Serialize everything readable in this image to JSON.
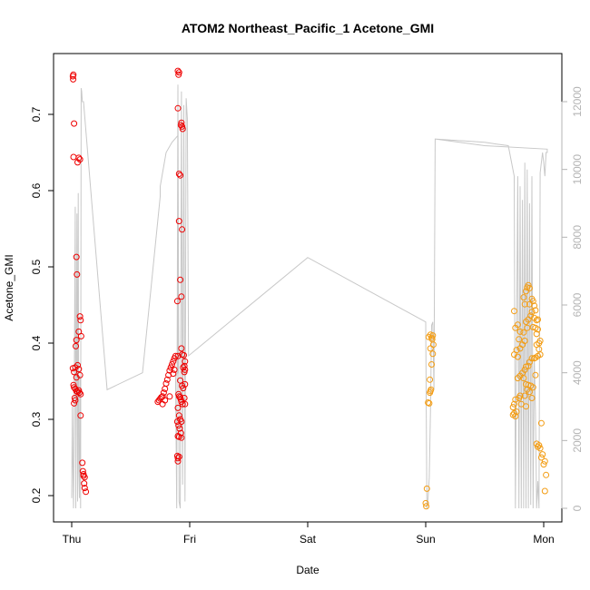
{
  "chart_data": {
    "type": "scatter",
    "title": "ATOM2 Northeast_Pacific_1 Acetone_GMI",
    "xlabel": "Date",
    "ylabel": "Acetone_GMI",
    "x_ticks": [
      "Thu",
      "Fri",
      "Sat",
      "Sun",
      "Mon"
    ],
    "y_ticks": [
      "0.2",
      "0.3",
      "0.4",
      "0.5",
      "0.6",
      "0.7"
    ],
    "y2_ticks": [
      "0",
      "2000",
      "4000",
      "6000",
      "8000",
      "10000",
      "12000"
    ],
    "xlim": [
      0,
      4.0
    ],
    "ylim": [
      0.185,
      0.757
    ],
    "y2lim": [
      0,
      12500
    ],
    "grid": false,
    "colors": {
      "red": "#ee0000",
      "orange": "#f39c12",
      "gray_line": "#c8c8c8",
      "axis": "#000000"
    },
    "series": [
      {
        "color": "red",
        "points": [
          [
            0.01,
            0.75
          ],
          [
            0.012,
            0.746
          ],
          [
            0.014,
            0.752
          ],
          [
            0.02,
            0.688
          ],
          [
            0.015,
            0.644
          ],
          [
            0.05,
            0.637
          ],
          [
            0.06,
            0.643
          ],
          [
            0.07,
            0.641
          ],
          [
            0.04,
            0.513
          ],
          [
            0.045,
            0.49
          ],
          [
            0.07,
            0.435
          ],
          [
            0.075,
            0.43
          ],
          [
            0.06,
            0.415
          ],
          [
            0.08,
            0.409
          ],
          [
            0.04,
            0.404
          ],
          [
            0.035,
            0.396
          ],
          [
            0.05,
            0.371
          ],
          [
            0.06,
            0.366
          ],
          [
            0.01,
            0.367
          ],
          [
            0.02,
            0.362
          ],
          [
            0.03,
            0.368
          ],
          [
            0.04,
            0.355
          ],
          [
            0.07,
            0.358
          ],
          [
            0.015,
            0.345
          ],
          [
            0.02,
            0.342
          ],
          [
            0.03,
            0.34
          ],
          [
            0.04,
            0.337
          ],
          [
            0.05,
            0.336
          ],
          [
            0.06,
            0.338
          ],
          [
            0.065,
            0.335
          ],
          [
            0.075,
            0.333
          ],
          [
            0.025,
            0.328
          ],
          [
            0.03,
            0.325
          ],
          [
            0.02,
            0.321
          ],
          [
            0.075,
            0.305
          ],
          [
            0.09,
            0.243
          ],
          [
            0.095,
            0.232
          ],
          [
            0.1,
            0.228
          ],
          [
            0.11,
            0.224
          ],
          [
            0.105,
            0.216
          ],
          [
            0.11,
            0.21
          ],
          [
            0.12,
            0.205
          ],
          [
            0.1,
            0.226
          ],
          [
            0.73,
            0.323
          ],
          [
            0.74,
            0.325
          ],
          [
            0.75,
            0.327
          ],
          [
            0.76,
            0.329
          ],
          [
            0.77,
            0.33
          ],
          [
            0.78,
            0.335
          ],
          [
            0.79,
            0.34
          ],
          [
            0.8,
            0.347
          ],
          [
            0.81,
            0.352
          ],
          [
            0.82,
            0.358
          ],
          [
            0.83,
            0.364
          ],
          [
            0.84,
            0.368
          ],
          [
            0.85,
            0.372
          ],
          [
            0.86,
            0.376
          ],
          [
            0.87,
            0.38
          ],
          [
            0.88,
            0.383
          ],
          [
            0.77,
            0.32
          ],
          [
            0.79,
            0.325
          ],
          [
            0.83,
            0.33
          ],
          [
            0.86,
            0.36
          ],
          [
            0.87,
            0.365
          ],
          [
            0.9,
            0.757
          ],
          [
            0.905,
            0.752
          ],
          [
            0.91,
            0.755
          ],
          [
            0.93,
            0.689
          ],
          [
            0.935,
            0.684
          ],
          [
            0.94,
            0.681
          ],
          [
            0.925,
            0.686
          ],
          [
            0.9,
            0.708
          ],
          [
            0.91,
            0.622
          ],
          [
            0.92,
            0.62
          ],
          [
            0.935,
            0.549
          ],
          [
            0.91,
            0.56
          ],
          [
            0.92,
            0.483
          ],
          [
            0.93,
            0.461
          ],
          [
            0.895,
            0.455
          ],
          [
            0.93,
            0.393
          ],
          [
            0.935,
            0.385
          ],
          [
            0.95,
            0.384
          ],
          [
            0.96,
            0.376
          ],
          [
            0.955,
            0.37
          ],
          [
            0.96,
            0.365
          ],
          [
            0.945,
            0.368
          ],
          [
            0.955,
            0.362
          ],
          [
            0.9,
            0.383
          ],
          [
            0.92,
            0.351
          ],
          [
            0.935,
            0.344
          ],
          [
            0.945,
            0.341
          ],
          [
            0.96,
            0.346
          ],
          [
            0.905,
            0.333
          ],
          [
            0.91,
            0.33
          ],
          [
            0.92,
            0.329
          ],
          [
            0.925,
            0.326
          ],
          [
            0.93,
            0.323
          ],
          [
            0.94,
            0.32
          ],
          [
            0.955,
            0.328
          ],
          [
            0.96,
            0.32
          ],
          [
            0.9,
            0.315
          ],
          [
            0.91,
            0.305
          ],
          [
            0.92,
            0.3
          ],
          [
            0.93,
            0.297
          ],
          [
            0.895,
            0.297
          ],
          [
            0.905,
            0.292
          ],
          [
            0.915,
            0.288
          ],
          [
            0.925,
            0.282
          ],
          [
            0.9,
            0.278
          ],
          [
            0.91,
            0.277
          ],
          [
            0.93,
            0.276
          ],
          [
            0.895,
            0.252
          ],
          [
            0.9,
            0.249
          ],
          [
            0.91,
            0.251
          ],
          [
            0.9,
            0.245
          ]
        ]
      },
      {
        "color": "orange",
        "points": [
          [
            3.0,
            0.19
          ],
          [
            3.005,
            0.186
          ],
          [
            3.01,
            0.209
          ],
          [
            3.02,
            0.322
          ],
          [
            3.03,
            0.321
          ],
          [
            3.04,
            0.337
          ],
          [
            3.035,
            0.352
          ],
          [
            3.05,
            0.372
          ],
          [
            3.06,
            0.386
          ],
          [
            3.04,
            0.393
          ],
          [
            3.05,
            0.407
          ],
          [
            3.06,
            0.41
          ],
          [
            3.055,
            0.405
          ],
          [
            3.065,
            0.398
          ],
          [
            3.025,
            0.408
          ],
          [
            3.04,
            0.411
          ],
          [
            3.035,
            0.335
          ],
          [
            3.045,
            0.339
          ],
          [
            3.75,
            0.442
          ],
          [
            3.78,
            0.424
          ],
          [
            3.76,
            0.42
          ],
          [
            3.8,
            0.415
          ],
          [
            3.79,
            0.405
          ],
          [
            3.77,
            0.391
          ],
          [
            3.75,
            0.385
          ],
          [
            3.78,
            0.382
          ],
          [
            3.8,
            0.393
          ],
          [
            3.82,
            0.398
          ],
          [
            3.84,
            0.403
          ],
          [
            3.83,
            0.414
          ],
          [
            3.86,
            0.42
          ],
          [
            3.85,
            0.428
          ],
          [
            3.87,
            0.431
          ],
          [
            3.89,
            0.436
          ],
          [
            3.9,
            0.441
          ],
          [
            3.88,
            0.451
          ],
          [
            3.84,
            0.451
          ],
          [
            3.83,
            0.46
          ],
          [
            3.85,
            0.468
          ],
          [
            3.86,
            0.473
          ],
          [
            3.87,
            0.476
          ],
          [
            3.88,
            0.472
          ],
          [
            3.9,
            0.458
          ],
          [
            3.91,
            0.455
          ],
          [
            3.92,
            0.449
          ],
          [
            3.93,
            0.443
          ],
          [
            3.94,
            0.43
          ],
          [
            3.95,
            0.431
          ],
          [
            3.92,
            0.433
          ],
          [
            3.91,
            0.421
          ],
          [
            3.93,
            0.42
          ],
          [
            3.95,
            0.418
          ],
          [
            3.94,
            0.412
          ],
          [
            3.96,
            0.4
          ],
          [
            3.97,
            0.403
          ],
          [
            3.96,
            0.392
          ],
          [
            3.97,
            0.385
          ],
          [
            3.95,
            0.383
          ],
          [
            3.93,
            0.381
          ],
          [
            3.9,
            0.38
          ],
          [
            3.88,
            0.375
          ],
          [
            3.87,
            0.37
          ],
          [
            3.85,
            0.369
          ],
          [
            3.84,
            0.365
          ],
          [
            3.82,
            0.361
          ],
          [
            3.8,
            0.357
          ],
          [
            3.78,
            0.354
          ],
          [
            3.83,
            0.354
          ],
          [
            3.85,
            0.346
          ],
          [
            3.87,
            0.345
          ],
          [
            3.89,
            0.344
          ],
          [
            3.91,
            0.342
          ],
          [
            3.86,
            0.339
          ],
          [
            3.88,
            0.336
          ],
          [
            3.84,
            0.331
          ],
          [
            3.8,
            0.331
          ],
          [
            3.79,
            0.328
          ],
          [
            3.76,
            0.326
          ],
          [
            3.75,
            0.32
          ],
          [
            3.74,
            0.316
          ],
          [
            3.77,
            0.31
          ],
          [
            3.75,
            0.308
          ],
          [
            3.74,
            0.306
          ],
          [
            3.76,
            0.304
          ],
          [
            3.81,
            0.32
          ],
          [
            3.85,
            0.317
          ],
          [
            3.9,
            0.328
          ],
          [
            3.94,
            0.398
          ],
          [
            3.92,
            0.38
          ],
          [
            3.93,
            0.358
          ],
          [
            3.94,
            0.268
          ],
          [
            3.95,
            0.264
          ],
          [
            3.96,
            0.266
          ],
          [
            3.97,
            0.262
          ],
          [
            3.98,
            0.295
          ],
          [
            3.99,
            0.254
          ],
          [
            4.0,
            0.241
          ],
          [
            4.01,
            0.245
          ],
          [
            4.02,
            0.227
          ],
          [
            4.01,
            0.206
          ],
          [
            3.98,
            0.25
          ]
        ]
      }
    ],
    "line_secondary": {
      "color": "gray_line",
      "points": [
        [
          0.0,
          300
        ],
        [
          0.005,
          3000
        ],
        [
          0.01,
          1300
        ],
        [
          0.015,
          0
        ],
        [
          0.02,
          2400
        ],
        [
          0.03,
          8900
        ],
        [
          0.035,
          0
        ],
        [
          0.045,
          8700
        ],
        [
          0.05,
          200
        ],
        [
          0.055,
          9300
        ],
        [
          0.06,
          1200
        ],
        [
          0.065,
          300
        ],
        [
          0.07,
          3900
        ],
        [
          0.075,
          0
        ],
        [
          0.08,
          12400
        ],
        [
          0.085,
          12300
        ],
        [
          0.09,
          12000
        ],
        [
          0.1,
          12000
        ],
        [
          0.3,
          3500
        ],
        [
          0.6,
          4000
        ],
        [
          0.75,
          9200
        ],
        [
          0.75,
          9500
        ],
        [
          0.8,
          10500
        ],
        [
          0.85,
          10800
        ],
        [
          0.9,
          11000
        ],
        [
          0.9,
          4000
        ],
        [
          0.88,
          3900
        ],
        [
          0.89,
          0
        ],
        [
          0.9,
          12500
        ],
        [
          0.91,
          200
        ],
        [
          0.92,
          0
        ],
        [
          0.93,
          12300
        ],
        [
          0.94,
          700
        ],
        [
          0.95,
          11900
        ],
        [
          0.96,
          200
        ],
        [
          0.97,
          12100
        ],
        [
          0.98,
          11500
        ],
        [
          0.99,
          4500
        ],
        [
          2.0,
          7400
        ],
        [
          3.0,
          5500
        ],
        [
          3.01,
          0
        ],
        [
          3.02,
          300
        ],
        [
          3.03,
          900
        ],
        [
          3.04,
          2800
        ],
        [
          3.05,
          5400
        ],
        [
          3.06,
          5500
        ],
        [
          3.07,
          3500
        ],
        [
          3.08,
          10900
        ],
        [
          3.5,
          10800
        ],
        [
          3.6,
          10750
        ],
        [
          3.7,
          10700
        ],
        [
          3.75,
          9800
        ],
        [
          3.76,
          0
        ],
        [
          3.78,
          9800
        ],
        [
          3.79,
          0
        ],
        [
          3.8,
          9500
        ],
        [
          3.81,
          0
        ],
        [
          3.82,
          9100
        ],
        [
          3.83,
          0
        ],
        [
          3.84,
          10200
        ],
        [
          3.85,
          0
        ],
        [
          3.86,
          10000
        ],
        [
          3.87,
          0
        ],
        [
          3.88,
          9000
        ],
        [
          3.89,
          100
        ],
        [
          3.9,
          9800
        ],
        [
          3.91,
          0
        ],
        [
          3.92,
          4500
        ],
        [
          3.93,
          2900
        ],
        [
          3.94,
          0
        ],
        [
          3.95,
          800
        ],
        [
          3.96,
          0
        ],
        [
          3.97,
          9900
        ],
        [
          3.99,
          10500
        ],
        [
          4.0,
          10200
        ],
        [
          4.01,
          9800
        ],
        [
          4.02,
          10500
        ],
        [
          4.03,
          10500
        ],
        [
          4.03,
          10600
        ],
        [
          3.5,
          10700
        ],
        [
          3.08,
          10900
        ]
      ]
    }
  }
}
